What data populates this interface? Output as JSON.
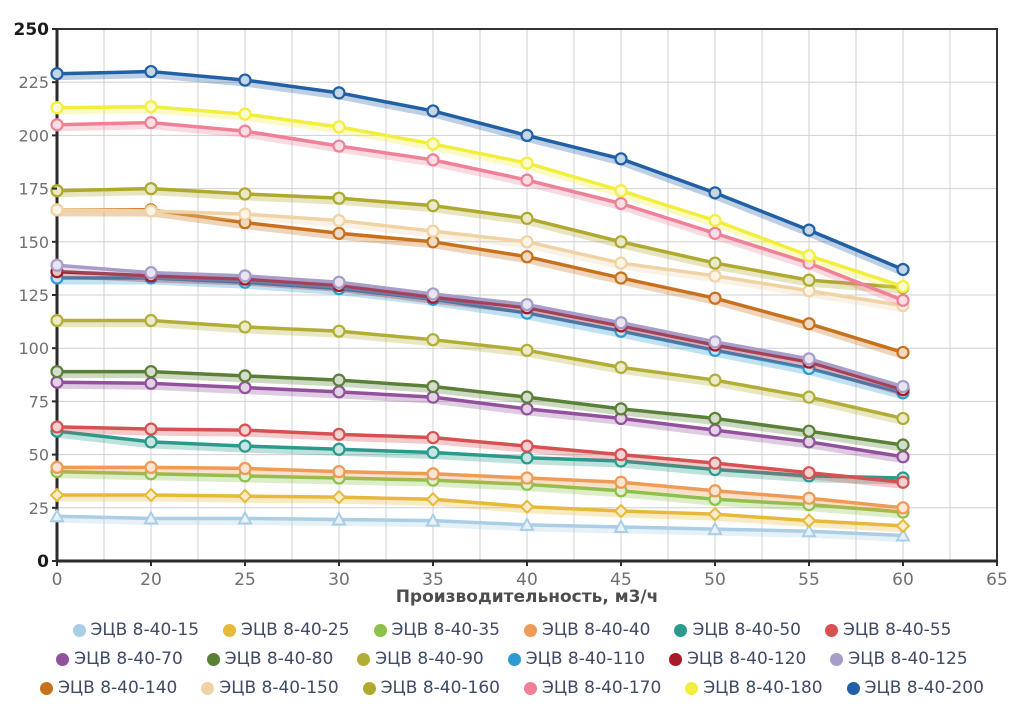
{
  "chart_data": {
    "type": "line",
    "title": "",
    "xlabel": "Производительность, м3/ч",
    "ylabel": "",
    "x_categories": [
      0,
      20,
      25,
      30,
      35,
      40,
      45,
      50,
      55,
      60
    ],
    "x_tick_labels": [
      "0",
      "20",
      "25",
      "30",
      "35",
      "40",
      "45",
      "50",
      "55",
      "60",
      "65"
    ],
    "y_ticks": [
      0,
      25,
      50,
      75,
      100,
      125,
      150,
      175,
      200,
      225,
      250
    ],
    "y_bold_ticks": [
      0,
      250
    ],
    "ylim": [
      0,
      250
    ],
    "grid": true,
    "legend_position": "bottom",
    "series": [
      {
        "name": "ЭЦВ 8-40-15",
        "color": "#a9cee6",
        "marker": "triangle",
        "values": [
          21,
          20,
          20,
          19.5,
          19,
          17,
          16,
          15,
          14,
          12
        ]
      },
      {
        "name": "ЭЦВ 8-40-25",
        "color": "#e7b93a",
        "marker": "diamond",
        "values": [
          31,
          31,
          30.5,
          30,
          29,
          25.5,
          23.5,
          22,
          19,
          16.5
        ]
      },
      {
        "name": "ЭЦВ 8-40-35",
        "color": "#8ec04b",
        "marker": "circle",
        "values": [
          42,
          41,
          40,
          39,
          38,
          36,
          33,
          29,
          26.5,
          23
        ]
      },
      {
        "name": "ЭЦВ 8-40-40",
        "color": "#ef9a55",
        "marker": "circle",
        "values": [
          44,
          44,
          43.5,
          42,
          41,
          39,
          37,
          33,
          29.5,
          25
        ]
      },
      {
        "name": "ЭЦВ 8-40-50",
        "color": "#2a9a8c",
        "marker": "circle",
        "values": [
          61,
          56,
          54,
          52.5,
          51,
          48.5,
          47,
          43,
          40,
          39
        ]
      },
      {
        "name": "ЭЦВ 8-40-55",
        "color": "#d75052",
        "marker": "circle",
        "values": [
          63,
          62,
          61.5,
          59.5,
          58,
          54,
          50,
          46,
          41.5,
          37
        ]
      },
      {
        "name": "ЭЦВ 8-40-70",
        "color": "#92519c",
        "marker": "circle",
        "values": [
          84,
          83.5,
          81.5,
          79.5,
          77,
          71.5,
          67,
          61.5,
          56,
          49
        ]
      },
      {
        "name": "ЭЦВ 8-40-80",
        "color": "#5a8038",
        "marker": "circle",
        "values": [
          89,
          89,
          87,
          85,
          82,
          77,
          71.5,
          67,
          61,
          54.5
        ]
      },
      {
        "name": "ЭЦВ 8-40-90",
        "color": "#b2ae35",
        "marker": "circle",
        "values": [
          113,
          113,
          110,
          108,
          104,
          99,
          91,
          85,
          77,
          67
        ]
      },
      {
        "name": "ЭЦВ 8-40-110",
        "color": "#2e9ad2",
        "marker": "circle",
        "values": [
          133,
          133,
          131,
          128,
          123,
          116.5,
          108,
          99,
          90.5,
          79
        ]
      },
      {
        "name": "ЭЦВ 8-40-120",
        "color": "#a31a28",
        "marker": "circle",
        "values": [
          136,
          134,
          132.5,
          129.5,
          124,
          119,
          110.5,
          101.5,
          93.5,
          80.5
        ]
      },
      {
        "name": "ЭЦВ 8-40-125",
        "color": "#a89cc8",
        "marker": "circle",
        "values": [
          139,
          135.5,
          134,
          131,
          125.5,
          120.5,
          112,
          103,
          95,
          82
        ]
      },
      {
        "name": "ЭЦВ 8-40-140",
        "color": "#c8711c",
        "marker": "circle",
        "values": [
          165,
          165,
          159,
          154,
          150,
          143,
          133,
          123.5,
          111.5,
          98
        ]
      },
      {
        "name": "ЭЦВ 8-40-150",
        "color": "#f0d3a4",
        "marker": "circle",
        "values": [
          165,
          164.5,
          163,
          160,
          155,
          150,
          140,
          134,
          127,
          120
        ]
      },
      {
        "name": "ЭЦВ 8-40-160",
        "color": "#afa92e",
        "marker": "circle",
        "values": [
          174,
          175,
          172.5,
          170.5,
          167,
          161,
          150,
          140,
          132,
          128.5
        ]
      },
      {
        "name": "ЭЦВ 8-40-170",
        "color": "#ef8098",
        "marker": "circle",
        "values": [
          205,
          206,
          202,
          195,
          188.5,
          179,
          168,
          154,
          140,
          122.5
        ]
      },
      {
        "name": "ЭЦВ 8-40-180",
        "color": "#f2ee3e",
        "marker": "circle",
        "values": [
          213,
          213.5,
          210,
          204,
          196,
          187,
          174,
          160,
          143.5,
          129
        ]
      },
      {
        "name": "ЭЦВ 8-40-200",
        "color": "#2160a4",
        "marker": "circle",
        "values": [
          229,
          230,
          226,
          220,
          211.5,
          200,
          189,
          173,
          155.5,
          137
        ]
      }
    ],
    "style": {
      "grid_color": "#d0d0d0",
      "frame_color": "#333333",
      "tick_label_color": "#707070",
      "bold_tick_color": "#1a1a1a",
      "axis_title_color": "#4d4d4d",
      "legend_text_color": "#3f4b66"
    }
  }
}
